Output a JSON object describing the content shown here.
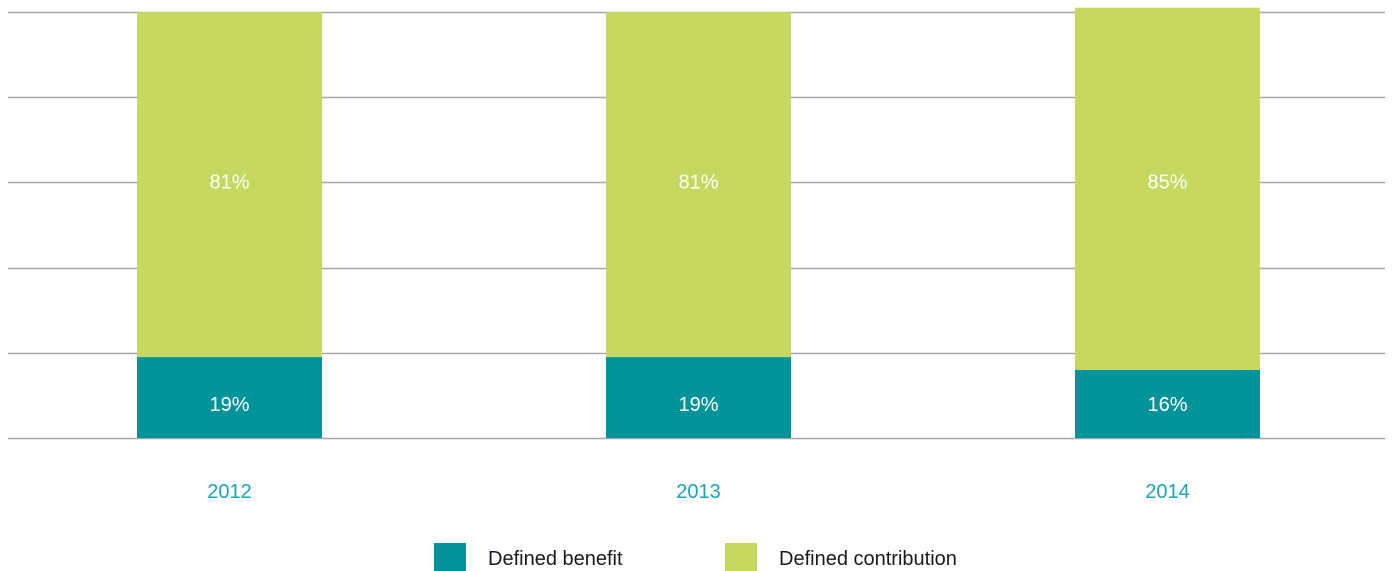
{
  "chart_data": {
    "type": "bar",
    "stacked": true,
    "categories": [
      "2012",
      "2013",
      "2014"
    ],
    "series": [
      {
        "name": "Defined benefit",
        "values": [
          19,
          19,
          16
        ],
        "labels": [
          "19%",
          "19%",
          "16%"
        ],
        "color": "#00939a"
      },
      {
        "name": "Defined contribution",
        "values": [
          81,
          81,
          85
        ],
        "labels": [
          "81%",
          "81%",
          "85%"
        ],
        "color": "#c6d85f"
      }
    ],
    "ylim": [
      0,
      100
    ],
    "grid": true,
    "legend_position": "bottom",
    "title": "",
    "xlabel": "",
    "ylabel": ""
  },
  "colors": {
    "gridline": "#a6a6a6",
    "category_label": "#1aa3b3",
    "segment_label": "#ffffff",
    "legend_text": "#1a1a1a"
  }
}
